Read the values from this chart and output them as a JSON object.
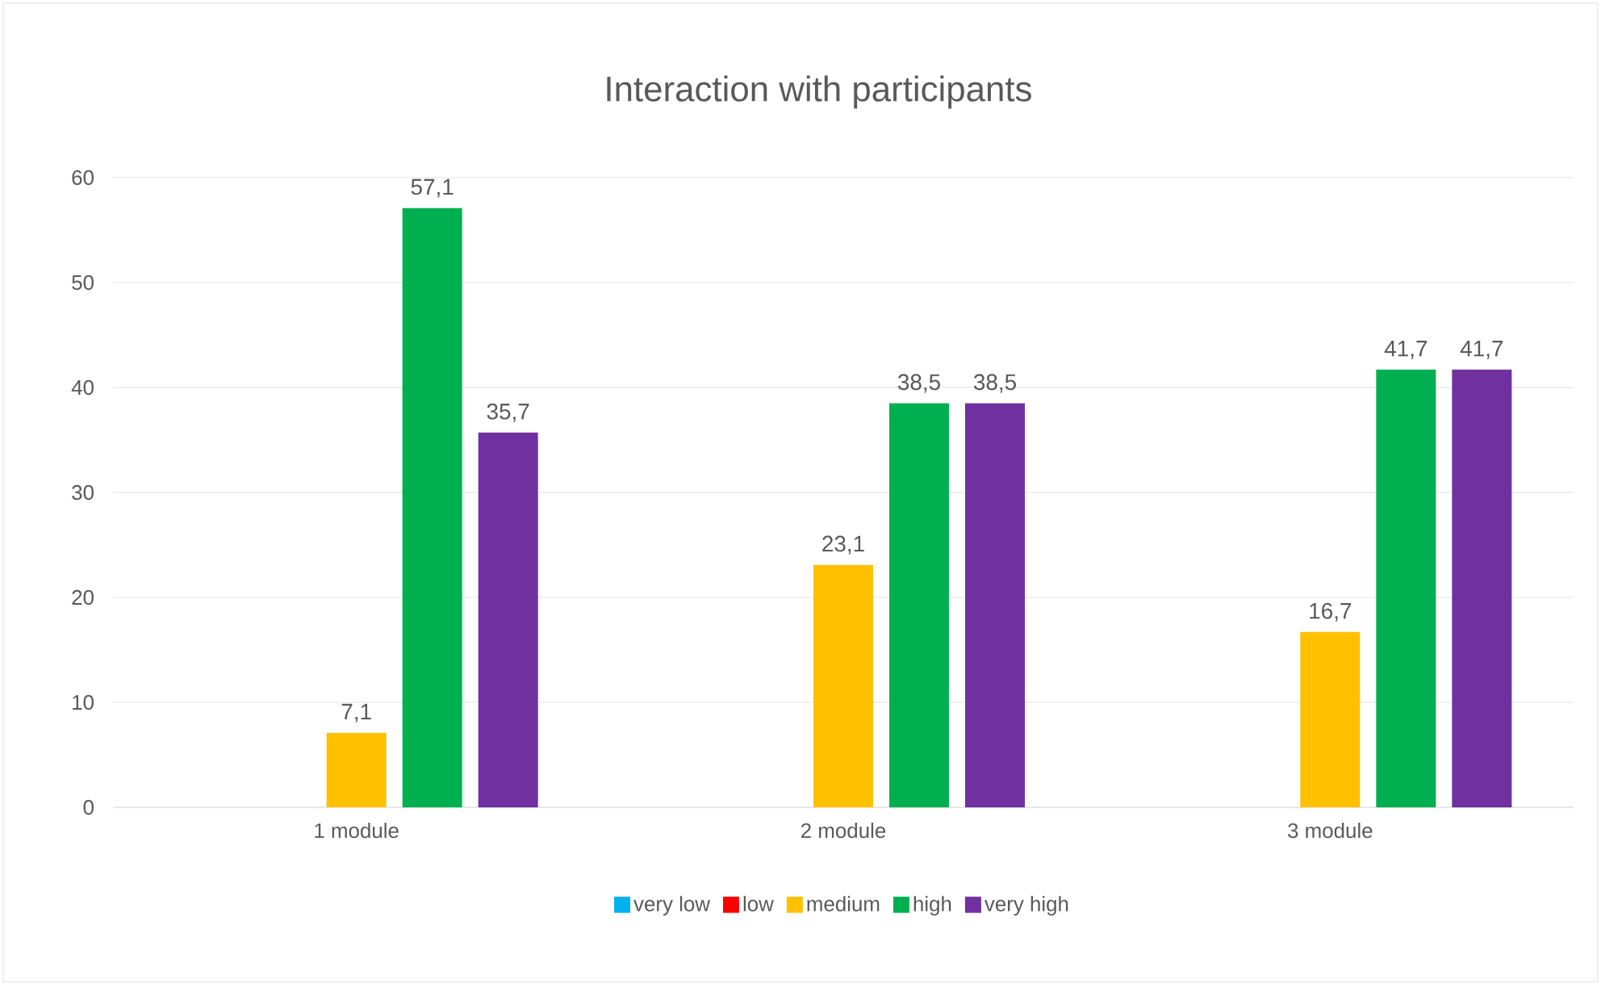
{
  "chart_data": {
    "type": "bar",
    "title": "Interaction with participants",
    "categories": [
      "1 module",
      "2 module",
      "3 module"
    ],
    "series": [
      {
        "name": "very low",
        "color": "#00b0f0",
        "values": [
          null,
          null,
          null
        ],
        "value_labels": [
          null,
          null,
          null
        ]
      },
      {
        "name": "low",
        "color": "#ff0000",
        "values": [
          null,
          null,
          null
        ],
        "value_labels": [
          null,
          null,
          null
        ]
      },
      {
        "name": "medium",
        "color": "#ffc000",
        "values": [
          7.1,
          23.1,
          16.7
        ],
        "value_labels": [
          "7,1",
          "23,1",
          "16,7"
        ]
      },
      {
        "name": "high",
        "color": "#00b050",
        "values": [
          57.1,
          38.5,
          41.7
        ],
        "value_labels": [
          "57,1",
          "38,5",
          "41,7"
        ]
      },
      {
        "name": "very high",
        "color": "#7030a0",
        "values": [
          35.7,
          38.5,
          41.7
        ],
        "value_labels": [
          "35,7",
          "38,5",
          "41,7"
        ]
      }
    ],
    "ylim": [
      0,
      60
    ],
    "yticks": [
      0,
      10,
      20,
      30,
      40,
      50,
      60
    ],
    "grid": "y",
    "legend": "bottom"
  }
}
